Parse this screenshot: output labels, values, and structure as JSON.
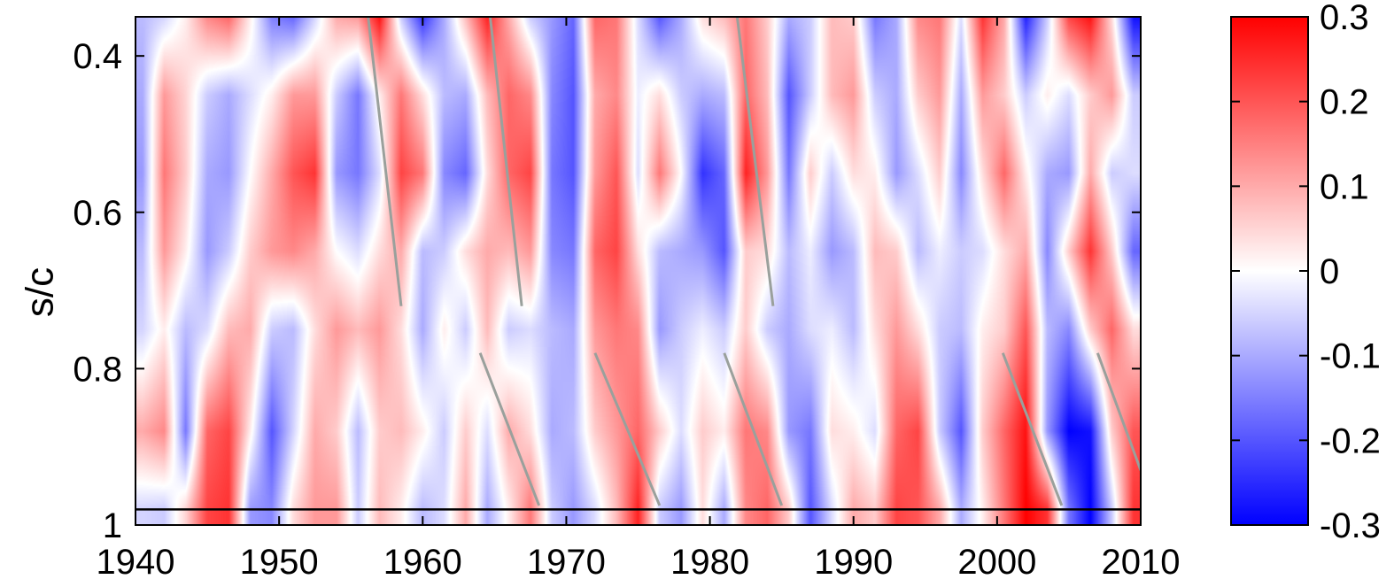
{
  "chart_data": {
    "type": "heatmap",
    "title": "",
    "xlabel": "",
    "ylabel": "s/c",
    "xlim": [
      1940,
      2010
    ],
    "ylim": [
      0.35,
      1.0
    ],
    "y_reversed": true,
    "x_ticks": [
      1940,
      1950,
      1960,
      1970,
      1980,
      1990,
      2000,
      2010
    ],
    "x_tick_labels": [
      "1940",
      "1950",
      "1960",
      "1970",
      "1980",
      "1990",
      "2000",
      "2010"
    ],
    "y_ticks": [
      0.4,
      0.6,
      0.8,
      1.0
    ],
    "y_tick_labels": [
      "0.4",
      "0.6",
      "0.8",
      "1"
    ],
    "colorbar": {
      "range": [
        -0.3,
        0.3
      ],
      "ticks": [
        0.3,
        0.2,
        0.1,
        0,
        -0.1,
        -0.2,
        -0.3
      ],
      "tick_labels": [
        "0.3",
        "0.2",
        "0.1",
        "0",
        "-0.1",
        "-0.2",
        "-0.3"
      ],
      "colormap": [
        "#0000ff",
        "#ffffff",
        "#ff0000"
      ]
    },
    "inner_boundary_line": 0.98,
    "field_columns": [
      {
        "x": 1940.5,
        "v": [
          -0.08,
          -0.1,
          -0.12,
          -0.08,
          -0.05,
          0.1,
          -0.05
        ]
      },
      {
        "x": 1942.0,
        "v": [
          -0.05,
          0.12,
          0.16,
          0.12,
          0.02,
          0.14,
          -0.06
        ]
      },
      {
        "x": 1943.5,
        "v": [
          0.02,
          0.05,
          0.06,
          0.02,
          -0.08,
          -0.16,
          0.05
        ]
      },
      {
        "x": 1945.0,
        "v": [
          0.14,
          -0.06,
          -0.1,
          -0.12,
          -0.04,
          0.18,
          0.22
        ]
      },
      {
        "x": 1946.5,
        "v": [
          0.18,
          -0.1,
          -0.12,
          -0.06,
          0.08,
          0.22,
          0.24
        ]
      },
      {
        "x": 1948.0,
        "v": [
          0.02,
          -0.04,
          0.0,
          0.06,
          0.1,
          0.02,
          -0.12
        ]
      },
      {
        "x": 1949.5,
        "v": [
          -0.15,
          0.02,
          0.1,
          0.12,
          -0.06,
          -0.2,
          -0.14
        ]
      },
      {
        "x": 1951.0,
        "v": [
          -0.18,
          0.12,
          0.2,
          0.14,
          -0.08,
          -0.05,
          0.04
        ]
      },
      {
        "x": 1952.5,
        "v": [
          -0.05,
          0.12,
          0.24,
          0.1,
          0.04,
          0.1,
          0.12
        ]
      },
      {
        "x": 1954.0,
        "v": [
          0.1,
          -0.06,
          -0.12,
          0.0,
          0.12,
          0.06,
          0.12
        ]
      },
      {
        "x": 1955.5,
        "v": [
          0.12,
          -0.16,
          -0.16,
          -0.04,
          0.08,
          -0.08,
          -0.06
        ]
      },
      {
        "x": 1957.0,
        "v": [
          0.28,
          0.02,
          -0.04,
          0.04,
          0.12,
          0.06,
          0.08
        ]
      },
      {
        "x": 1958.5,
        "v": [
          -0.06,
          0.16,
          0.22,
          0.1,
          0.04,
          0.08,
          0.02
        ]
      },
      {
        "x": 1960.0,
        "v": [
          -0.24,
          0.04,
          0.16,
          -0.08,
          -0.1,
          0.02,
          -0.08
        ]
      },
      {
        "x": 1961.5,
        "v": [
          -0.1,
          -0.08,
          -0.14,
          -0.06,
          0.02,
          -0.06,
          -0.04
        ]
      },
      {
        "x": 1963.0,
        "v": [
          0.08,
          -0.1,
          -0.18,
          0.04,
          -0.06,
          0.06,
          0.1
        ]
      },
      {
        "x": 1964.5,
        "v": [
          0.26,
          0.08,
          0.04,
          0.1,
          0.08,
          -0.04,
          -0.1
        ]
      },
      {
        "x": 1966.0,
        "v": [
          0.1,
          0.18,
          0.18,
          0.08,
          -0.06,
          0.1,
          0.02
        ]
      },
      {
        "x": 1967.5,
        "v": [
          -0.06,
          0.14,
          0.22,
          0.12,
          -0.04,
          0.04,
          0.16
        ]
      },
      {
        "x": 1969.0,
        "v": [
          -0.12,
          -0.14,
          -0.16,
          -0.14,
          -0.08,
          -0.1,
          -0.06
        ]
      },
      {
        "x": 1970.5,
        "v": [
          -0.18,
          -0.2,
          -0.2,
          -0.16,
          -0.1,
          -0.08,
          -0.12
        ]
      },
      {
        "x": 1972.0,
        "v": [
          0.18,
          0.1,
          0.12,
          0.18,
          0.12,
          0.06,
          -0.04
        ]
      },
      {
        "x": 1973.5,
        "v": [
          0.16,
          0.14,
          0.2,
          0.22,
          0.16,
          0.12,
          0.08
        ]
      },
      {
        "x": 1975.0,
        "v": [
          -0.04,
          -0.02,
          -0.04,
          0.04,
          0.14,
          0.18,
          0.26
        ]
      },
      {
        "x": 1976.5,
        "v": [
          -0.2,
          0.04,
          0.16,
          -0.08,
          -0.12,
          0.06,
          -0.06
        ]
      },
      {
        "x": 1978.0,
        "v": [
          -0.1,
          -0.06,
          0.0,
          -0.1,
          -0.06,
          -0.04,
          -0.12
        ]
      },
      {
        "x": 1979.5,
        "v": [
          0.04,
          -0.1,
          -0.24,
          -0.12,
          -0.02,
          0.06,
          0.04
        ]
      },
      {
        "x": 1981.0,
        "v": [
          0.08,
          -0.08,
          -0.18,
          -0.2,
          -0.06,
          0.02,
          -0.1
        ]
      },
      {
        "x": 1982.5,
        "v": [
          0.16,
          0.18,
          0.26,
          0.06,
          0.06,
          0.16,
          0.14
        ]
      },
      {
        "x": 1984.0,
        "v": [
          0.06,
          0.08,
          0.12,
          0.04,
          -0.06,
          0.14,
          0.18
        ]
      },
      {
        "x": 1985.5,
        "v": [
          -0.1,
          -0.2,
          -0.16,
          -0.08,
          -0.1,
          -0.12,
          0.06
        ]
      },
      {
        "x": 1987.0,
        "v": [
          -0.06,
          -0.06,
          0.06,
          -0.02,
          -0.04,
          -0.16,
          -0.2
        ]
      },
      {
        "x": 1988.5,
        "v": [
          0.08,
          0.08,
          -0.06,
          -0.12,
          -0.02,
          0.04,
          -0.04
        ]
      },
      {
        "x": 1990.0,
        "v": [
          0.06,
          0.12,
          0.04,
          -0.08,
          -0.08,
          0.02,
          0.1
        ]
      },
      {
        "x": 1991.5,
        "v": [
          -0.16,
          -0.06,
          0.02,
          0.08,
          0.04,
          -0.04,
          0.06
        ]
      },
      {
        "x": 1993.0,
        "v": [
          -0.1,
          -0.1,
          -0.12,
          0.06,
          0.12,
          0.18,
          0.22
        ]
      },
      {
        "x": 1994.5,
        "v": [
          0.14,
          0.06,
          -0.04,
          -0.08,
          0.04,
          0.22,
          0.2
        ]
      },
      {
        "x": 1996.0,
        "v": [
          0.16,
          0.12,
          0.06,
          -0.02,
          -0.06,
          -0.06,
          0.1
        ]
      },
      {
        "x": 1997.5,
        "v": [
          -0.04,
          -0.1,
          -0.14,
          -0.06,
          -0.08,
          -0.2,
          -0.1
        ]
      },
      {
        "x": 1999.0,
        "v": [
          0.24,
          0.12,
          0.04,
          -0.04,
          0.02,
          0.06,
          0.02
        ]
      },
      {
        "x": 2000.5,
        "v": [
          0.1,
          0.06,
          0.18,
          0.04,
          0.06,
          0.18,
          0.16
        ]
      },
      {
        "x": 2002.0,
        "v": [
          -0.26,
          -0.06,
          0.02,
          0.1,
          0.2,
          0.28,
          0.3
        ]
      },
      {
        "x": 2003.5,
        "v": [
          -0.06,
          0.02,
          -0.1,
          -0.14,
          -0.08,
          -0.12,
          0.24
        ]
      },
      {
        "x": 2005.0,
        "v": [
          0.22,
          -0.04,
          -0.12,
          0.06,
          -0.14,
          -0.3,
          -0.16
        ]
      },
      {
        "x": 2006.5,
        "v": [
          0.28,
          0.06,
          0.1,
          0.24,
          0.06,
          -0.28,
          -0.3
        ]
      },
      {
        "x": 2008.0,
        "v": [
          0.04,
          0.12,
          -0.06,
          0.06,
          0.18,
          0.06,
          -0.06
        ]
      },
      {
        "x": 2009.5,
        "v": [
          -0.28,
          -0.06,
          -0.04,
          -0.18,
          0.04,
          0.2,
          0.24
        ]
      }
    ],
    "field_rows_s": [
      0.35,
      0.45,
      0.55,
      0.65,
      0.75,
      0.88,
      0.98
    ],
    "annotation_lines": [
      {
        "x1": 1956.2,
        "y1": 0.35,
        "x2": 1958.5,
        "y2": 0.72
      },
      {
        "x1": 1964.7,
        "y1": 0.35,
        "x2": 1966.9,
        "y2": 0.72
      },
      {
        "x1": 1981.9,
        "y1": 0.35,
        "x2": 1984.4,
        "y2": 0.72
      },
      {
        "x1": 1964.0,
        "y1": 0.78,
        "x2": 1968.1,
        "y2": 0.975
      },
      {
        "x1": 1972.0,
        "y1": 0.78,
        "x2": 1976.5,
        "y2": 0.975
      },
      {
        "x1": 1981.0,
        "y1": 0.78,
        "x2": 1985.0,
        "y2": 0.975
      },
      {
        "x1": 2000.4,
        "y1": 0.78,
        "x2": 2004.5,
        "y2": 0.975
      },
      {
        "x1": 2007.0,
        "y1": 0.78,
        "x2": 2010.0,
        "y2": 0.93
      }
    ]
  }
}
